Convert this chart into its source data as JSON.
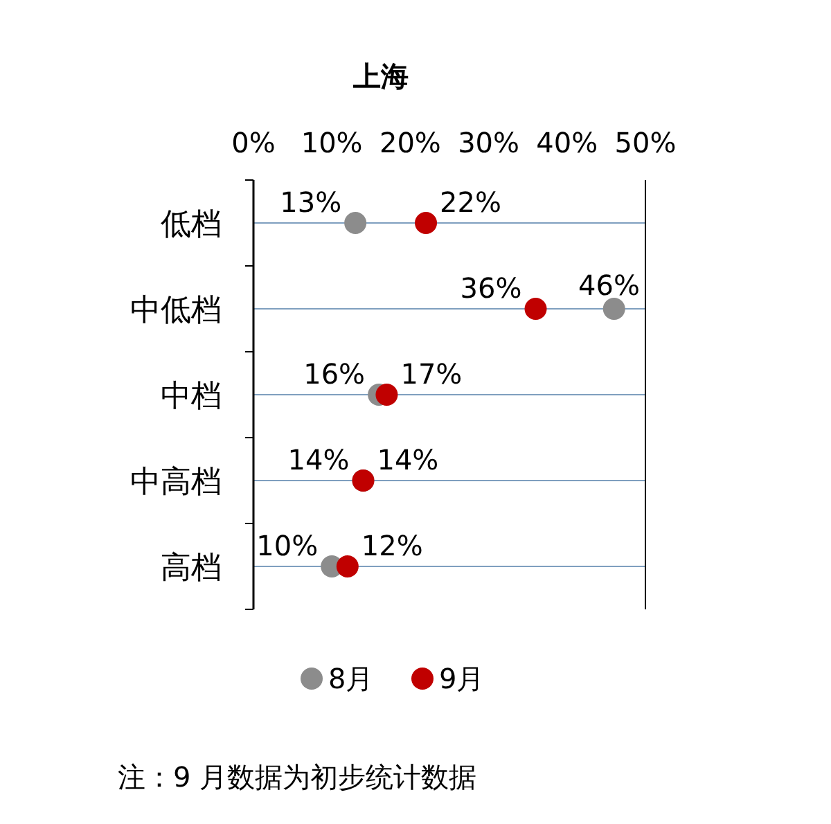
{
  "chart_data": {
    "type": "scatter",
    "orientation": "horizontal",
    "title": "上海",
    "categories": [
      "低档",
      "中低档",
      "中档",
      "中高档",
      "高档"
    ],
    "series": [
      {
        "name": "8月",
        "color": "#8c8c8c",
        "values": [
          13,
          46,
          16,
          14,
          10
        ],
        "value_labels": [
          "13%",
          "46%",
          "16%",
          "14%",
          "10%"
        ]
      },
      {
        "name": "9月",
        "color": "#c00000",
        "values": [
          22,
          36,
          17,
          14,
          12
        ],
        "value_labels": [
          "22%",
          "36%",
          "17%",
          "14%",
          "12%"
        ]
      }
    ],
    "xlim": [
      0,
      50
    ],
    "xticks": [
      {
        "value": 0,
        "label": "0%"
      },
      {
        "value": 10,
        "label": "10%"
      },
      {
        "value": 20,
        "label": "20%"
      },
      {
        "value": 30,
        "label": "30%"
      },
      {
        "value": 40,
        "label": "40%"
      },
      {
        "value": 50,
        "label": "50%"
      }
    ],
    "grid": "y",
    "legend": "bottom",
    "marker": "circle",
    "annotations": [
      "注：9 月数据为初步统计数据"
    ]
  }
}
